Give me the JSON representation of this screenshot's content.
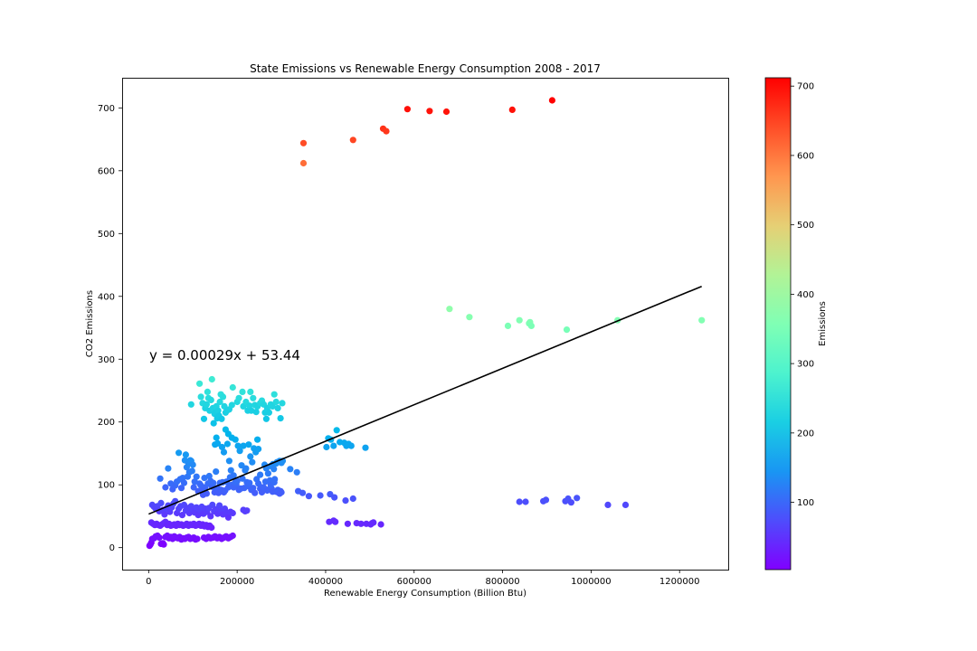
{
  "chart_data": {
    "type": "scatter",
    "title": "State Emissions vs Renewable Energy Consumption 2008 - 2017",
    "xlabel": "Renewable Energy Consumption (Billion Btu)",
    "ylabel": "CO2 Emissions",
    "xlim": [
      -60000,
      1310000
    ],
    "ylim": [
      -35,
      748
    ],
    "xticks": [
      0,
      200000,
      400000,
      600000,
      800000,
      1000000,
      1200000
    ],
    "xtick_labels": [
      "0",
      "200000",
      "400000",
      "600000",
      "800000",
      "1000000",
      "1200000"
    ],
    "yticks": [
      0,
      100,
      200,
      300,
      400,
      500,
      600,
      700
    ],
    "ytick_labels": [
      "0",
      "100",
      "200",
      "300",
      "400",
      "500",
      "600",
      "700"
    ],
    "grid": false,
    "colormap": "rainbow",
    "color_by": "y",
    "regression": {
      "equation": "y = 0.00029x + 53.44",
      "slope": 0.00029,
      "intercept": 53.44,
      "x_range": [
        0,
        1250000
      ],
      "line_color": "#000000"
    },
    "colorbar": {
      "label": "Emissions",
      "range": [
        3,
        712
      ],
      "ticks": [
        100,
        200,
        300,
        400,
        500,
        600,
        700
      ],
      "tick_labels": [
        "100",
        "200",
        "300",
        "400",
        "500",
        "600",
        "700"
      ]
    },
    "points": [
      [
        350000,
        644
      ],
      [
        350000,
        612
      ],
      [
        462000,
        649
      ],
      [
        530000,
        667
      ],
      [
        537000,
        663
      ],
      [
        585000,
        698
      ],
      [
        635000,
        695
      ],
      [
        673000,
        694
      ],
      [
        822000,
        697
      ],
      [
        912000,
        712
      ],
      [
        680000,
        380
      ],
      [
        725000,
        367
      ],
      [
        812000,
        353
      ],
      [
        838000,
        362
      ],
      [
        860000,
        357
      ],
      [
        862000,
        359
      ],
      [
        865000,
        353
      ],
      [
        945000,
        347
      ],
      [
        1060000,
        362
      ],
      [
        1250000,
        362
      ],
      [
        838000,
        73
      ],
      [
        852000,
        73
      ],
      [
        892000,
        74
      ],
      [
        898000,
        76
      ],
      [
        942000,
        74
      ],
      [
        948000,
        78
      ],
      [
        955000,
        72
      ],
      [
        968000,
        79
      ],
      [
        1038000,
        68
      ],
      [
        1078000,
        68
      ],
      [
        402000,
        160
      ],
      [
        406000,
        174
      ],
      [
        412000,
        172
      ],
      [
        418000,
        162
      ],
      [
        425000,
        187
      ],
      [
        432000,
        168
      ],
      [
        442000,
        167
      ],
      [
        447000,
        162
      ],
      [
        452000,
        165
      ],
      [
        458000,
        162
      ],
      [
        490000,
        159
      ],
      [
        408000,
        41
      ],
      [
        418000,
        43
      ],
      [
        422000,
        41
      ],
      [
        450000,
        38
      ],
      [
        470000,
        39
      ],
      [
        480000,
        38
      ],
      [
        492000,
        38
      ],
      [
        502000,
        37
      ],
      [
        505000,
        39
      ],
      [
        508000,
        40
      ],
      [
        525000,
        37
      ],
      [
        335000,
        120
      ],
      [
        338000,
        90
      ],
      [
        348000,
        87
      ],
      [
        362000,
        82
      ],
      [
        388000,
        83
      ],
      [
        410000,
        85
      ],
      [
        420000,
        80
      ],
      [
        445000,
        75
      ],
      [
        462000,
        78
      ],
      [
        115000,
        261
      ],
      [
        118000,
        240
      ],
      [
        122000,
        230
      ],
      [
        125000,
        205
      ],
      [
        128000,
        222
      ],
      [
        131000,
        228
      ],
      [
        133000,
        248
      ],
      [
        135000,
        238
      ],
      [
        138000,
        218
      ],
      [
        141000,
        235
      ],
      [
        143000,
        268
      ],
      [
        145000,
        222
      ],
      [
        147000,
        198
      ],
      [
        149000,
        213
      ],
      [
        151000,
        215
      ],
      [
        153000,
        225
      ],
      [
        155000,
        206
      ],
      [
        157000,
        218
      ],
      [
        159000,
        210
      ],
      [
        161000,
        232
      ],
      [
        163000,
        244
      ],
      [
        165000,
        205
      ],
      [
        168000,
        240
      ],
      [
        171000,
        225
      ],
      [
        174000,
        215
      ],
      [
        177000,
        218
      ],
      [
        182000,
        220
      ],
      [
        188000,
        227
      ],
      [
        190000,
        255
      ],
      [
        200000,
        232
      ],
      [
        204000,
        238
      ],
      [
        212000,
        248
      ],
      [
        214000,
        225
      ],
      [
        220000,
        232
      ],
      [
        224000,
        218
      ],
      [
        228000,
        226
      ],
      [
        230000,
        248
      ],
      [
        232000,
        218
      ],
      [
        236000,
        238
      ],
      [
        240000,
        227
      ],
      [
        243000,
        216
      ],
      [
        246000,
        225
      ],
      [
        252000,
        230
      ],
      [
        256000,
        234
      ],
      [
        260000,
        228
      ],
      [
        263000,
        215
      ],
      [
        266000,
        205
      ],
      [
        268000,
        222
      ],
      [
        272000,
        215
      ],
      [
        276000,
        228
      ],
      [
        280000,
        225
      ],
      [
        284000,
        244
      ],
      [
        288000,
        232
      ],
      [
        292000,
        222
      ],
      [
        298000,
        206
      ],
      [
        302000,
        230
      ],
      [
        96000,
        228
      ],
      [
        150000,
        164
      ],
      [
        153000,
        175
      ],
      [
        156000,
        166
      ],
      [
        166000,
        160
      ],
      [
        170000,
        152
      ],
      [
        174000,
        188
      ],
      [
        178000,
        165
      ],
      [
        180000,
        181
      ],
      [
        182000,
        138
      ],
      [
        186000,
        123
      ],
      [
        188000,
        175
      ],
      [
        192000,
        115
      ],
      [
        196000,
        172
      ],
      [
        198000,
        100
      ],
      [
        202000,
        162
      ],
      [
        206000,
        154
      ],
      [
        210000,
        131
      ],
      [
        214000,
        162
      ],
      [
        218000,
        123
      ],
      [
        222000,
        104
      ],
      [
        226000,
        164
      ],
      [
        230000,
        145
      ],
      [
        234000,
        136
      ],
      [
        238000,
        158
      ],
      [
        242000,
        152
      ],
      [
        246000,
        172
      ],
      [
        248000,
        157
      ],
      [
        252000,
        116
      ],
      [
        256000,
        96
      ],
      [
        262000,
        132
      ],
      [
        266000,
        126
      ],
      [
        270000,
        118
      ],
      [
        274000,
        107
      ],
      [
        276000,
        130
      ],
      [
        278000,
        94
      ],
      [
        281000,
        133
      ],
      [
        283000,
        125
      ],
      [
        285000,
        109
      ],
      [
        288000,
        134
      ],
      [
        290000,
        136
      ],
      [
        292000,
        88
      ],
      [
        296000,
        138
      ],
      [
        298000,
        90
      ],
      [
        300000,
        135
      ],
      [
        303000,
        138
      ],
      [
        320000,
        125
      ],
      [
        26000,
        110
      ],
      [
        38000,
        96
      ],
      [
        44000,
        126
      ],
      [
        50000,
        102
      ],
      [
        54000,
        93
      ],
      [
        60000,
        99
      ],
      [
        64000,
        105
      ],
      [
        68000,
        151
      ],
      [
        71000,
        109
      ],
      [
        74000,
        95
      ],
      [
        77000,
        111
      ],
      [
        80000,
        103
      ],
      [
        82000,
        139
      ],
      [
        84000,
        148
      ],
      [
        86000,
        128
      ],
      [
        88000,
        113
      ],
      [
        90000,
        134
      ],
      [
        92000,
        120
      ],
      [
        94000,
        139
      ],
      [
        96000,
        138
      ],
      [
        98000,
        122
      ],
      [
        100000,
        132
      ],
      [
        102000,
        96
      ],
      [
        104000,
        105
      ],
      [
        108000,
        113
      ],
      [
        112000,
        90
      ],
      [
        115000,
        102
      ],
      [
        118000,
        99
      ],
      [
        120000,
        90
      ],
      [
        123000,
        84
      ],
      [
        126000,
        111
      ],
      [
        128000,
        96
      ],
      [
        131000,
        86
      ],
      [
        134000,
        102
      ],
      [
        137000,
        114
      ],
      [
        140000,
        106
      ],
      [
        143000,
        97
      ],
      [
        146000,
        103
      ],
      [
        149000,
        88
      ],
      [
        152000,
        121
      ],
      [
        155000,
        95
      ],
      [
        158000,
        87
      ],
      [
        161000,
        103
      ],
      [
        164000,
        92
      ],
      [
        167000,
        104
      ],
      [
        170000,
        88
      ],
      [
        173000,
        91
      ],
      [
        176000,
        105
      ],
      [
        180000,
        96
      ],
      [
        184000,
        112
      ],
      [
        188000,
        100
      ],
      [
        192000,
        96
      ],
      [
        196000,
        104
      ],
      [
        200000,
        106
      ],
      [
        204000,
        92
      ],
      [
        208000,
        94
      ],
      [
        212000,
        110
      ],
      [
        216000,
        95
      ],
      [
        220000,
        126
      ],
      [
        224000,
        98
      ],
      [
        228000,
        103
      ],
      [
        232000,
        92
      ],
      [
        236000,
        95
      ],
      [
        240000,
        87
      ],
      [
        244000,
        109
      ],
      [
        248000,
        102
      ],
      [
        252000,
        94
      ],
      [
        256000,
        88
      ],
      [
        260000,
        96
      ],
      [
        264000,
        105
      ],
      [
        268000,
        91
      ],
      [
        272000,
        93
      ],
      [
        276000,
        100
      ],
      [
        280000,
        89
      ],
      [
        284000,
        104
      ],
      [
        288000,
        89
      ],
      [
        292000,
        92
      ],
      [
        296000,
        86
      ],
      [
        300000,
        88
      ],
      [
        8000,
        68
      ],
      [
        12000,
        65
      ],
      [
        16000,
        62
      ],
      [
        20000,
        66
      ],
      [
        24000,
        58
      ],
      [
        28000,
        71
      ],
      [
        32000,
        60
      ],
      [
        36000,
        53
      ],
      [
        40000,
        62
      ],
      [
        44000,
        67
      ],
      [
        48000,
        57
      ],
      [
        52000,
        64
      ],
      [
        56000,
        70
      ],
      [
        60000,
        74
      ],
      [
        64000,
        55
      ],
      [
        68000,
        62
      ],
      [
        72000,
        66
      ],
      [
        76000,
        52
      ],
      [
        80000,
        68
      ],
      [
        84000,
        59
      ],
      [
        88000,
        63
      ],
      [
        92000,
        55
      ],
      [
        96000,
        66
      ],
      [
        100000,
        61
      ],
      [
        104000,
        56
      ],
      [
        108000,
        64
      ],
      [
        112000,
        52
      ],
      [
        116000,
        60
      ],
      [
        120000,
        65
      ],
      [
        124000,
        54
      ],
      [
        128000,
        62
      ],
      [
        132000,
        57
      ],
      [
        136000,
        63
      ],
      [
        140000,
        50
      ],
      [
        144000,
        68
      ],
      [
        148000,
        58
      ],
      [
        152000,
        61
      ],
      [
        156000,
        54
      ],
      [
        160000,
        67
      ],
      [
        164000,
        58
      ],
      [
        168000,
        53
      ],
      [
        172000,
        62
      ],
      [
        176000,
        56
      ],
      [
        180000,
        48
      ],
      [
        185000,
        57
      ],
      [
        190000,
        55
      ],
      [
        214000,
        60
      ],
      [
        218000,
        58
      ],
      [
        222000,
        59
      ],
      [
        6000,
        40
      ],
      [
        10000,
        38
      ],
      [
        14000,
        36
      ],
      [
        18000,
        38
      ],
      [
        22000,
        36
      ],
      [
        26000,
        35
      ],
      [
        30000,
        37
      ],
      [
        34000,
        39
      ],
      [
        38000,
        41
      ],
      [
        42000,
        36
      ],
      [
        46000,
        38
      ],
      [
        50000,
        35
      ],
      [
        54000,
        36
      ],
      [
        58000,
        37
      ],
      [
        62000,
        35
      ],
      [
        66000,
        38
      ],
      [
        70000,
        36
      ],
      [
        74000,
        37
      ],
      [
        78000,
        35
      ],
      [
        82000,
        36
      ],
      [
        86000,
        38
      ],
      [
        90000,
        35
      ],
      [
        94000,
        37
      ],
      [
        98000,
        36
      ],
      [
        102000,
        38
      ],
      [
        106000,
        35
      ],
      [
        110000,
        36
      ],
      [
        114000,
        38
      ],
      [
        118000,
        35
      ],
      [
        122000,
        37
      ],
      [
        126000,
        34
      ],
      [
        130000,
        36
      ],
      [
        134000,
        33
      ],
      [
        138000,
        35
      ],
      [
        142000,
        32
      ],
      [
        2000,
        3
      ],
      [
        4000,
        5
      ],
      [
        6000,
        8
      ],
      [
        8000,
        14
      ],
      [
        12000,
        15
      ],
      [
        16000,
        18
      ],
      [
        20000,
        19
      ],
      [
        24000,
        16
      ],
      [
        28000,
        6
      ],
      [
        32000,
        7
      ],
      [
        34000,
        5
      ],
      [
        38000,
        17
      ],
      [
        42000,
        19
      ],
      [
        46000,
        15
      ],
      [
        50000,
        17
      ],
      [
        54000,
        14
      ],
      [
        58000,
        18
      ],
      [
        62000,
        16
      ],
      [
        66000,
        15
      ],
      [
        70000,
        17
      ],
      [
        74000,
        13
      ],
      [
        78000,
        15
      ],
      [
        82000,
        14
      ],
      [
        86000,
        16
      ],
      [
        90000,
        17
      ],
      [
        94000,
        14
      ],
      [
        98000,
        15
      ],
      [
        102000,
        16
      ],
      [
        106000,
        13
      ],
      [
        110000,
        14
      ],
      [
        125000,
        16
      ],
      [
        130000,
        14
      ],
      [
        135000,
        17
      ],
      [
        140000,
        15
      ],
      [
        145000,
        16
      ],
      [
        150000,
        18
      ],
      [
        155000,
        15
      ],
      [
        160000,
        17
      ],
      [
        165000,
        14
      ],
      [
        170000,
        16
      ],
      [
        175000,
        18
      ],
      [
        180000,
        15
      ],
      [
        185000,
        17
      ],
      [
        190000,
        19
      ]
    ]
  }
}
